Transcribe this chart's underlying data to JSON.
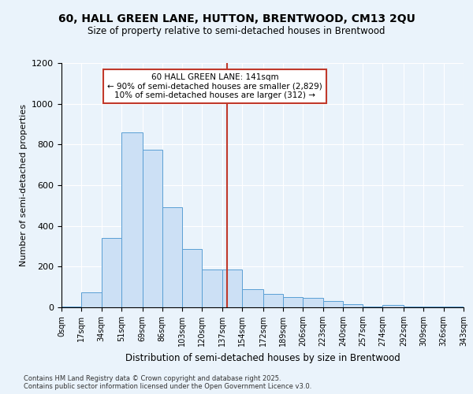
{
  "title1": "60, HALL GREEN LANE, HUTTON, BRENTWOOD, CM13 2QU",
  "title2": "Size of property relative to semi-detached houses in Brentwood",
  "xlabel": "Distribution of semi-detached houses by size in Brentwood",
  "ylabel": "Number of semi-detached properties",
  "footnote1": "Contains HM Land Registry data © Crown copyright and database right 2025.",
  "footnote2": "Contains public sector information licensed under the Open Government Licence v3.0.",
  "annotation_title": "60 HALL GREEN LANE: 141sqm",
  "annotation_line1": "← 90% of semi-detached houses are smaller (2,829)",
  "annotation_line2": "10% of semi-detached houses are larger (312) →",
  "property_size": 141,
  "bin_edges": [
    0,
    17,
    34,
    51,
    69,
    86,
    103,
    120,
    137,
    154,
    172,
    189,
    206,
    223,
    240,
    257,
    274,
    292,
    309,
    326,
    343
  ],
  "bar_values": [
    5,
    75,
    340,
    860,
    775,
    490,
    285,
    185,
    185,
    90,
    65,
    50,
    45,
    30,
    15,
    5,
    10,
    5,
    5,
    5
  ],
  "bar_color": "#cce0f5",
  "bar_edge_color": "#5a9fd4",
  "vline_color": "#c0392b",
  "vline_x": 141,
  "annotation_box_color": "#c0392b",
  "background_color": "#eaf3fb",
  "grid_color": "#ffffff",
  "ylim": [
    0,
    1200
  ],
  "yticks": [
    0,
    200,
    400,
    600,
    800,
    1000,
    1200
  ]
}
